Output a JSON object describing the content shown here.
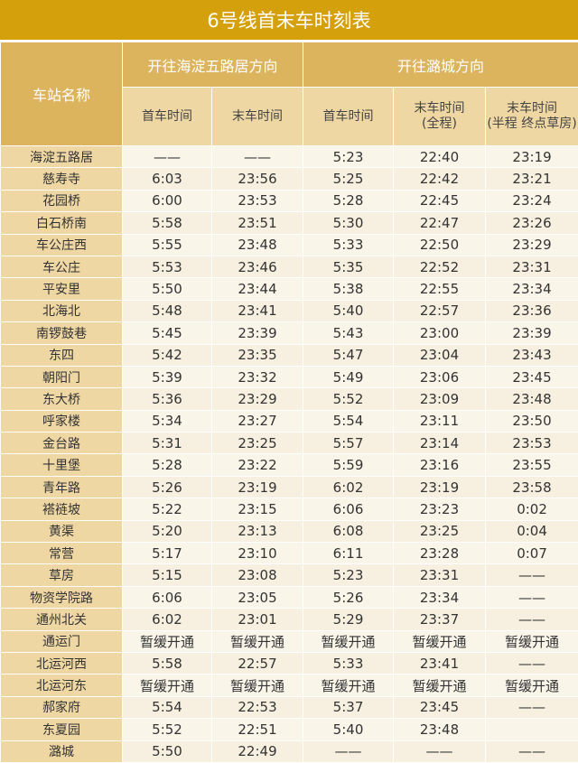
{
  "title": "6号线首末车时刻表",
  "headers": {
    "station": "车站名称",
    "group_west": "开往海淀五路居方向",
    "group_east": "开往潞城方向",
    "sub": [
      "首车时间",
      "末车时间",
      "首车时间",
      "末车时间\n(全程)",
      "末车时间\n(半程 终点草房)"
    ]
  },
  "rows": [
    [
      "海淀五路居",
      "——",
      "——",
      "5:23",
      "22:40",
      "23:19"
    ],
    [
      "慈寿寺",
      "6:03",
      "23:56",
      "5:25",
      "22:42",
      "23:21"
    ],
    [
      "花园桥",
      "6:00",
      "23:53",
      "5:28",
      "22:45",
      "23:24"
    ],
    [
      "白石桥南",
      "5:58",
      "23:51",
      "5:30",
      "22:47",
      "23:26"
    ],
    [
      "车公庄西",
      "5:55",
      "23:48",
      "5:33",
      "22:50",
      "23:29"
    ],
    [
      "车公庄",
      "5:53",
      "23:46",
      "5:35",
      "22:52",
      "23:31"
    ],
    [
      "平安里",
      "5:50",
      "23:44",
      "5:38",
      "22:55",
      "23:34"
    ],
    [
      "北海北",
      "5:48",
      "23:41",
      "5:40",
      "22:57",
      "23:36"
    ],
    [
      "南锣鼓巷",
      "5:45",
      "23:39",
      "5:43",
      "23:00",
      "23:39"
    ],
    [
      "东四",
      "5:42",
      "23:35",
      "5:47",
      "23:04",
      "23:43"
    ],
    [
      "朝阳门",
      "5:39",
      "23:32",
      "5:49",
      "23:06",
      "23:45"
    ],
    [
      "东大桥",
      "5:36",
      "23:29",
      "5:52",
      "23:09",
      "23:48"
    ],
    [
      "呼家楼",
      "5:34",
      "23:27",
      "5:54",
      "23:11",
      "23:50"
    ],
    [
      "金台路",
      "5:31",
      "23:25",
      "5:57",
      "23:14",
      "23:53"
    ],
    [
      "十里堡",
      "5:28",
      "23:22",
      "5:59",
      "23:16",
      "23:55"
    ],
    [
      "青年路",
      "5:26",
      "23:19",
      "6:02",
      "23:19",
      "23:58"
    ],
    [
      "褡裢坡",
      "5:22",
      "23:15",
      "6:06",
      "23:23",
      "0:02"
    ],
    [
      "黄渠",
      "5:20",
      "23:13",
      "6:08",
      "23:25",
      "0:04"
    ],
    [
      "常营",
      "5:17",
      "23:10",
      "6:11",
      "23:28",
      "0:07"
    ],
    [
      "草房",
      "5:15",
      "23:08",
      "5:23",
      "23:31",
      "——"
    ],
    [
      "物资学院路",
      "6:06",
      "23:05",
      "5:26",
      "23:34",
      "——"
    ],
    [
      "通州北关",
      "6:02",
      "23:01",
      "5:29",
      "23:37",
      "——"
    ],
    [
      "通运门",
      "暂缓开通",
      "暂缓开通",
      "暂缓开通",
      "暂缓开通",
      "暂缓开通"
    ],
    [
      "北运河西",
      "5:58",
      "22:57",
      "5:33",
      "23:41",
      "——"
    ],
    [
      "北运河东",
      "暂缓开通",
      "暂缓开通",
      "暂缓开通",
      "暂缓开通",
      "暂缓开通"
    ],
    [
      "郝家府",
      "5:54",
      "22:53",
      "5:37",
      "23:45",
      "——"
    ],
    [
      "东夏园",
      "5:52",
      "22:51",
      "5:40",
      "23:48",
      ""
    ],
    [
      "潞城",
      "5:50",
      "22:49",
      "——",
      "——",
      "——"
    ]
  ],
  "colors": {
    "title_bg": "#d4a00c",
    "header_bg": "#ddb45e",
    "subheader_bg": "#efd7a4",
    "cell_bg": "#faf5e9"
  }
}
